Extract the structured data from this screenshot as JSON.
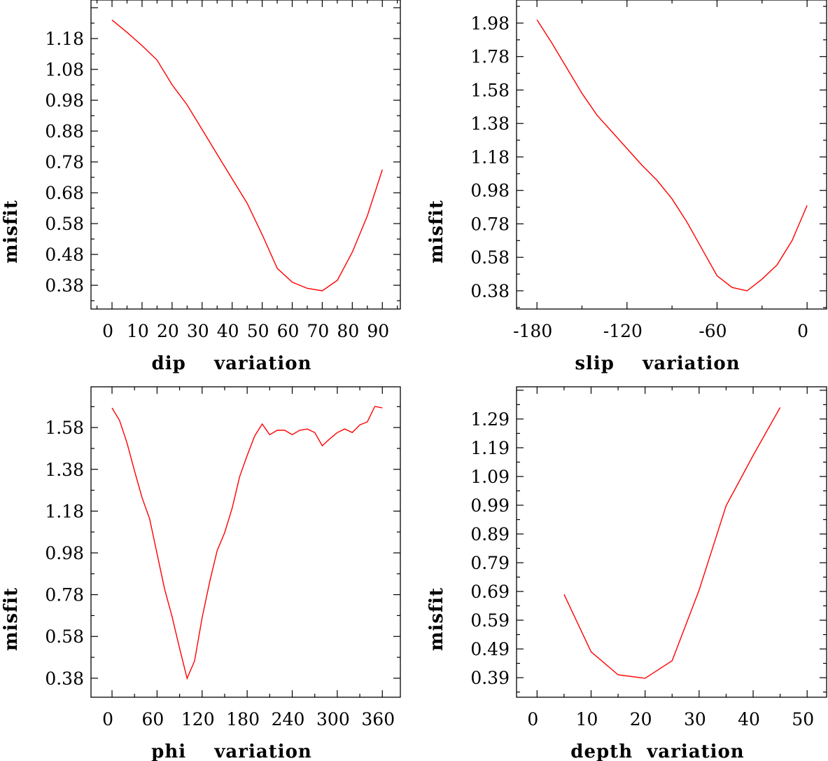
{
  "chart_data": [
    {
      "type": "line",
      "title": "",
      "xlabel": "dip    variation",
      "ylabel": "misfit",
      "xlim": [
        -7,
        96
      ],
      "ylim": [
        0.303,
        1.305
      ],
      "grid": false,
      "line_color": "#ff0000",
      "xticks": [
        0,
        10,
        20,
        30,
        40,
        50,
        60,
        70,
        80,
        90
      ],
      "xtick_labels": [
        "0",
        "10",
        "20",
        "30",
        "40",
        "50",
        "60",
        "70",
        "80",
        "90"
      ],
      "yticks": [
        0.38,
        0.48,
        0.58,
        0.68,
        0.78,
        0.88,
        0.98,
        1.08,
        1.18
      ],
      "ytick_labels": [
        "0.38",
        "0.48",
        "0.58",
        "0.68",
        "0.78",
        "0.88",
        "0.98",
        "1.08",
        "1.18"
      ],
      "x": [
        0,
        5,
        10,
        15,
        20,
        25,
        30,
        35,
        40,
        45,
        50,
        55,
        60,
        65,
        70,
        75,
        80,
        85,
        90
      ],
      "y": [
        1.24,
        1.2,
        1.157,
        1.11,
        1.03,
        0.965,
        0.885,
        0.805,
        0.725,
        0.646,
        0.544,
        0.435,
        0.39,
        0.37,
        0.362,
        0.396,
        0.487,
        0.605,
        0.755
      ]
    },
    {
      "type": "line",
      "title": "",
      "xlabel": "slip    variation",
      "ylabel": "misfit",
      "xlim": [
        -193.6,
        13
      ],
      "ylim": [
        0.271,
        2.118
      ],
      "grid": false,
      "line_color": "#ff0000",
      "xticks": [
        -180,
        -120,
        -60,
        0
      ],
      "xtick_labels": [
        "-180",
        "-120",
        "-60",
        "0"
      ],
      "yticks": [
        0.38,
        0.58,
        0.78,
        0.98,
        1.18,
        1.38,
        1.58,
        1.78,
        1.98
      ],
      "ytick_labels": [
        "0.38",
        "0.58",
        "0.78",
        "0.98",
        "1.18",
        "1.38",
        "1.58",
        "1.78",
        "1.98"
      ],
      "x": [
        -180,
        -170,
        -160,
        -150,
        -140,
        -130,
        -120,
        -110,
        -100,
        -90,
        -80,
        -70,
        -60,
        -50,
        -40,
        -30,
        -20,
        -10,
        0
      ],
      "y": [
        2.0,
        1.86,
        1.71,
        1.56,
        1.43,
        1.33,
        1.23,
        1.13,
        1.04,
        0.93,
        0.79,
        0.63,
        0.47,
        0.4,
        0.38,
        0.45,
        0.535,
        0.68,
        0.89
      ]
    },
    {
      "type": "line",
      "title": "",
      "xlabel": "phi    variation",
      "ylabel": "misfit",
      "xlim": [
        -28,
        384
      ],
      "ylim": [
        0.289,
        1.775
      ],
      "grid": false,
      "line_color": "#ff0000",
      "xticks": [
        0,
        60,
        120,
        180,
        240,
        300,
        360
      ],
      "xtick_labels": [
        "0",
        "60",
        "120",
        "180",
        "240",
        "300",
        "360"
      ],
      "yticks": [
        0.38,
        0.58,
        0.78,
        0.98,
        1.18,
        1.38,
        1.58
      ],
      "ytick_labels": [
        "0.38",
        "0.58",
        "0.78",
        "0.98",
        "1.18",
        "1.38",
        "1.58"
      ],
      "x": [
        0,
        10,
        20,
        30,
        40,
        50,
        60,
        70,
        80,
        90,
        100,
        110,
        120,
        130,
        140,
        150,
        160,
        170,
        180,
        190,
        200,
        210,
        220,
        230,
        240,
        250,
        260,
        270,
        280,
        290,
        300,
        310,
        320,
        330,
        340,
        350,
        360
      ],
      "y": [
        1.674,
        1.614,
        1.506,
        1.372,
        1.244,
        1.144,
        0.976,
        0.808,
        0.674,
        0.523,
        0.379,
        0.463,
        0.67,
        0.84,
        0.99,
        1.077,
        1.194,
        1.345,
        1.446,
        1.54,
        1.597,
        1.546,
        1.567,
        1.567,
        1.546,
        1.567,
        1.573,
        1.556,
        1.493,
        1.526,
        1.556,
        1.573,
        1.556,
        1.593,
        1.607,
        1.681,
        1.674
      ]
    },
    {
      "type": "line",
      "title": "",
      "xlabel": "depth  variation",
      "ylabel": "misfit",
      "xlim": [
        -3.8,
        53.6
      ],
      "ylim": [
        0.322,
        1.402
      ],
      "grid": false,
      "line_color": "#ff0000",
      "xticks": [
        0,
        10,
        20,
        30,
        40,
        50
      ],
      "xtick_labels": [
        "0",
        "10",
        "20",
        "30",
        "40",
        "50"
      ],
      "yticks": [
        0.39,
        0.49,
        0.59,
        0.69,
        0.79,
        0.89,
        0.99,
        1.09,
        1.19,
        1.29
      ],
      "ytick_labels": [
        "0.39",
        "0.49",
        "0.59",
        "0.69",
        "0.79",
        "0.89",
        "0.99",
        "1.09",
        "1.19",
        "1.29"
      ],
      "x": [
        5,
        10,
        15,
        20,
        25,
        30,
        35,
        40,
        45
      ],
      "y": [
        0.68,
        0.48,
        0.4,
        0.388,
        0.449,
        0.695,
        0.988,
        1.163,
        1.33
      ]
    }
  ]
}
